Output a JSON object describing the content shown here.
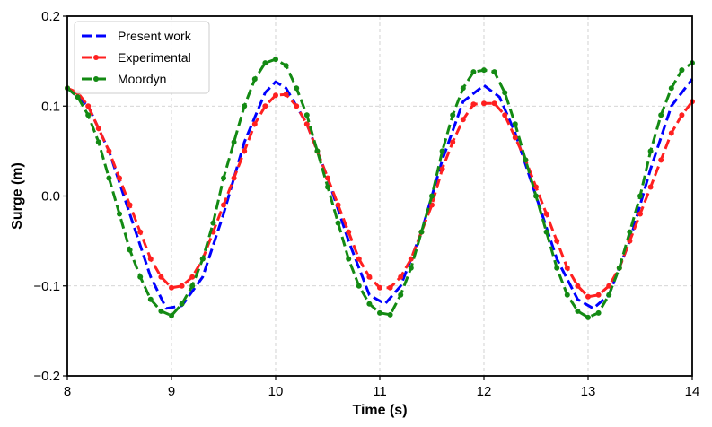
{
  "chart_data": {
    "type": "line",
    "title": "",
    "xlabel": "Time (s)",
    "ylabel": "Surge (m)",
    "xlim": [
      8,
      14
    ],
    "ylim": [
      -0.2,
      0.2
    ],
    "xticks": [
      8,
      9,
      10,
      11,
      12,
      13,
      14
    ],
    "xtick_labels": [
      "8",
      "9",
      "10",
      "11",
      "12",
      "13",
      "14"
    ],
    "yticks": [
      -0.2,
      -0.1,
      0.0,
      0.1,
      0.2
    ],
    "ytick_labels": [
      "−0.2",
      "−0.1",
      "0.0",
      "0.1",
      "0.2"
    ],
    "grid": true,
    "legend_position": "top-left",
    "series": [
      {
        "name": "Present work",
        "color": "#0000ff",
        "marker": false,
        "points": [
          [
            8.0,
            0.12
          ],
          [
            8.2,
            0.1
          ],
          [
            8.4,
            0.05
          ],
          [
            8.6,
            -0.02
          ],
          [
            8.8,
            -0.09
          ],
          [
            8.95,
            -0.125
          ],
          [
            9.1,
            -0.122
          ],
          [
            9.3,
            -0.09
          ],
          [
            9.5,
            -0.02
          ],
          [
            9.7,
            0.06
          ],
          [
            9.9,
            0.115
          ],
          [
            10.0,
            0.127
          ],
          [
            10.1,
            0.12
          ],
          [
            10.3,
            0.08
          ],
          [
            10.5,
            0.02
          ],
          [
            10.7,
            -0.05
          ],
          [
            10.9,
            -0.11
          ],
          [
            11.05,
            -0.12
          ],
          [
            11.2,
            -0.1
          ],
          [
            11.4,
            -0.04
          ],
          [
            11.6,
            0.04
          ],
          [
            11.8,
            0.105
          ],
          [
            12.0,
            0.123
          ],
          [
            12.15,
            0.11
          ],
          [
            12.3,
            0.07
          ],
          [
            12.5,
            0.0
          ],
          [
            12.7,
            -0.07
          ],
          [
            12.9,
            -0.115
          ],
          [
            13.05,
            -0.125
          ],
          [
            13.2,
            -0.11
          ],
          [
            13.4,
            -0.05
          ],
          [
            13.6,
            0.03
          ],
          [
            13.8,
            0.1
          ],
          [
            14.0,
            0.13
          ]
        ]
      },
      {
        "name": "Experimental",
        "color": "#ff2020",
        "marker": true,
        "points": [
          [
            8.0,
            0.12
          ],
          [
            8.1,
            0.115
          ],
          [
            8.2,
            0.1
          ],
          [
            8.3,
            0.075
          ],
          [
            8.4,
            0.05
          ],
          [
            8.5,
            0.02
          ],
          [
            8.6,
            -0.01
          ],
          [
            8.7,
            -0.04
          ],
          [
            8.8,
            -0.07
          ],
          [
            8.9,
            -0.09
          ],
          [
            9.0,
            -0.102
          ],
          [
            9.1,
            -0.1
          ],
          [
            9.2,
            -0.09
          ],
          [
            9.3,
            -0.07
          ],
          [
            9.4,
            -0.04
          ],
          [
            9.5,
            -0.01
          ],
          [
            9.6,
            0.02
          ],
          [
            9.7,
            0.05
          ],
          [
            9.8,
            0.08
          ],
          [
            9.9,
            0.1
          ],
          [
            10.0,
            0.112
          ],
          [
            10.1,
            0.113
          ],
          [
            10.2,
            0.1
          ],
          [
            10.3,
            0.08
          ],
          [
            10.4,
            0.05
          ],
          [
            10.5,
            0.02
          ],
          [
            10.6,
            -0.01
          ],
          [
            10.7,
            -0.04
          ],
          [
            10.8,
            -0.07
          ],
          [
            10.9,
            -0.09
          ],
          [
            11.0,
            -0.102
          ],
          [
            11.1,
            -0.102
          ],
          [
            11.2,
            -0.09
          ],
          [
            11.3,
            -0.07
          ],
          [
            11.4,
            -0.04
          ],
          [
            11.5,
            -0.01
          ],
          [
            11.6,
            0.03
          ],
          [
            11.7,
            0.06
          ],
          [
            11.8,
            0.085
          ],
          [
            11.9,
            0.102
          ],
          [
            12.0,
            0.103
          ],
          [
            12.1,
            0.103
          ],
          [
            12.2,
            0.09
          ],
          [
            12.3,
            0.065
          ],
          [
            12.4,
            0.04
          ],
          [
            12.5,
            0.01
          ],
          [
            12.6,
            -0.02
          ],
          [
            12.7,
            -0.05
          ],
          [
            12.8,
            -0.08
          ],
          [
            12.9,
            -0.1
          ],
          [
            13.0,
            -0.112
          ],
          [
            13.1,
            -0.11
          ],
          [
            13.2,
            -0.1
          ],
          [
            13.3,
            -0.08
          ],
          [
            13.4,
            -0.05
          ],
          [
            13.5,
            -0.02
          ],
          [
            13.6,
            0.01
          ],
          [
            13.7,
            0.04
          ],
          [
            13.8,
            0.07
          ],
          [
            13.9,
            0.09
          ],
          [
            14.0,
            0.105
          ]
        ]
      },
      {
        "name": "Moordyn",
        "color": "#138a13",
        "marker": true,
        "points": [
          [
            8.0,
            0.12
          ],
          [
            8.1,
            0.11
          ],
          [
            8.2,
            0.09
          ],
          [
            8.3,
            0.06
          ],
          [
            8.4,
            0.02
          ],
          [
            8.5,
            -0.02
          ],
          [
            8.6,
            -0.06
          ],
          [
            8.7,
            -0.09
          ],
          [
            8.8,
            -0.115
          ],
          [
            8.9,
            -0.128
          ],
          [
            9.0,
            -0.133
          ],
          [
            9.1,
            -0.12
          ],
          [
            9.2,
            -0.1
          ],
          [
            9.3,
            -0.07
          ],
          [
            9.4,
            -0.03
          ],
          [
            9.5,
            0.02
          ],
          [
            9.6,
            0.06
          ],
          [
            9.7,
            0.1
          ],
          [
            9.8,
            0.13
          ],
          [
            9.9,
            0.148
          ],
          [
            10.0,
            0.152
          ],
          [
            10.1,
            0.145
          ],
          [
            10.2,
            0.12
          ],
          [
            10.3,
            0.09
          ],
          [
            10.4,
            0.05
          ],
          [
            10.5,
            0.01
          ],
          [
            10.6,
            -0.03
          ],
          [
            10.7,
            -0.07
          ],
          [
            10.8,
            -0.1
          ],
          [
            10.9,
            -0.12
          ],
          [
            11.0,
            -0.13
          ],
          [
            11.1,
            -0.132
          ],
          [
            11.2,
            -0.11
          ],
          [
            11.3,
            -0.08
          ],
          [
            11.4,
            -0.04
          ],
          [
            11.5,
            0.0
          ],
          [
            11.6,
            0.05
          ],
          [
            11.7,
            0.09
          ],
          [
            11.8,
            0.12
          ],
          [
            11.9,
            0.138
          ],
          [
            12.0,
            0.14
          ],
          [
            12.1,
            0.138
          ],
          [
            12.2,
            0.115
          ],
          [
            12.3,
            0.08
          ],
          [
            12.4,
            0.04
          ],
          [
            12.5,
            0.0
          ],
          [
            12.6,
            -0.04
          ],
          [
            12.7,
            -0.08
          ],
          [
            12.8,
            -0.11
          ],
          [
            12.9,
            -0.128
          ],
          [
            13.0,
            -0.135
          ],
          [
            13.1,
            -0.13
          ],
          [
            13.2,
            -0.11
          ],
          [
            13.3,
            -0.08
          ],
          [
            13.4,
            -0.04
          ],
          [
            13.5,
            0.0
          ],
          [
            13.6,
            0.05
          ],
          [
            13.7,
            0.09
          ],
          [
            13.8,
            0.12
          ],
          [
            13.9,
            0.14
          ],
          [
            14.0,
            0.148
          ]
        ]
      }
    ]
  }
}
